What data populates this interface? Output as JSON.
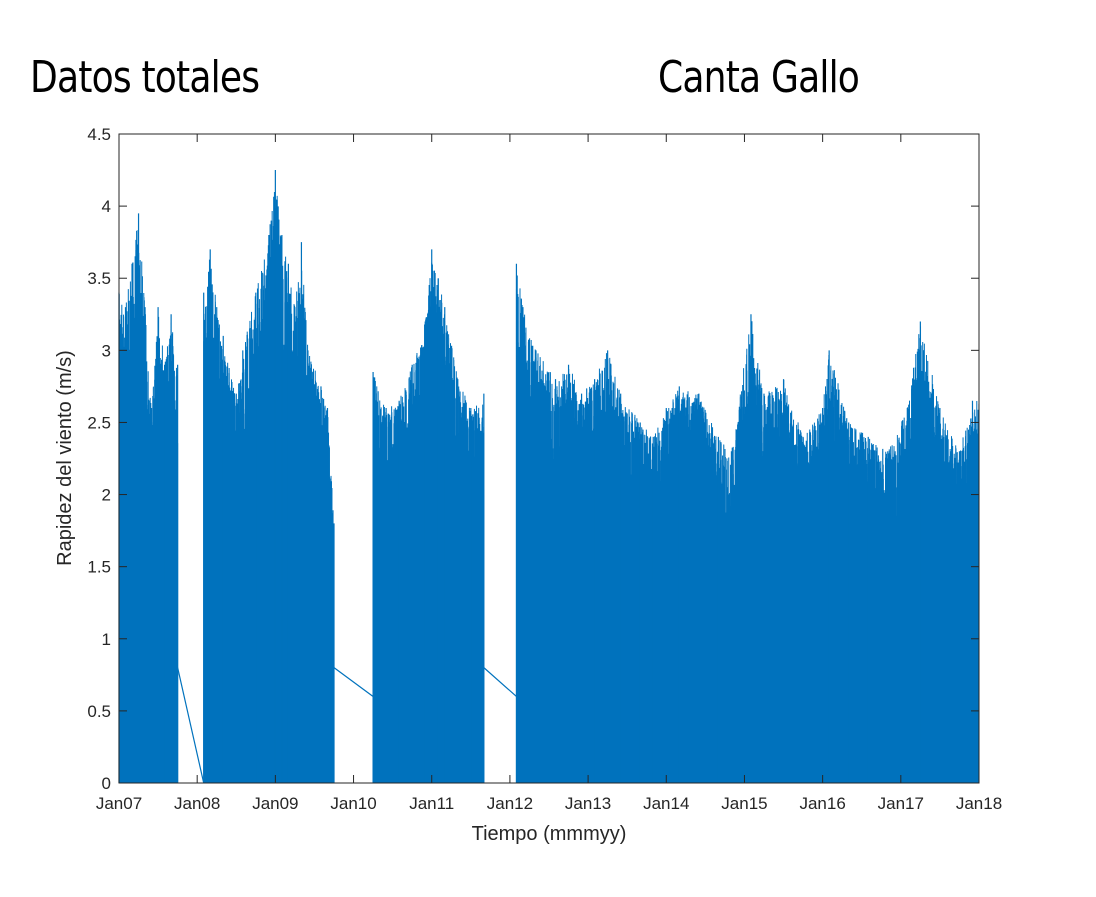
{
  "titles": {
    "left": "Datos totales",
    "right": "Canta Gallo"
  },
  "chart_data": {
    "type": "line",
    "xlabel": "Tiempo (mmmyy)",
    "ylabel": "Rapidez del viento (m/s)",
    "xlim": [
      "2007-01-01",
      "2018-01-01"
    ],
    "ylim": [
      0,
      4.5
    ],
    "x_ticks": [
      "Jan07",
      "Jan08",
      "Jan09",
      "Jan10",
      "Jan11",
      "Jan12",
      "Jan13",
      "Jan14",
      "Jan15",
      "Jan16",
      "Jan17",
      "Jan18"
    ],
    "y_ticks": [
      "0",
      "0.5",
      "1",
      "1.5",
      "2",
      "2.5",
      "3",
      "3.5",
      "4",
      "4.5"
    ],
    "grid": false,
    "color": "#0072bd",
    "series": [
      {
        "points": [
          [
            "2007-01",
            3.4
          ],
          [
            "2007-02",
            3.3
          ],
          [
            "2007-03",
            3.6
          ],
          [
            "2007-04",
            3.95
          ],
          [
            "2007-05",
            3.3
          ],
          [
            "2007-06",
            2.6
          ],
          [
            "2007-07",
            3.3
          ],
          [
            "2007-08",
            2.9
          ],
          [
            "2007-09",
            3.25
          ],
          [
            "2007-10",
            2.9
          ],
          [
            "2008-02",
            3.4
          ],
          [
            "2008-03",
            3.7
          ],
          [
            "2008-04",
            3.3
          ],
          [
            "2008-05",
            3.1
          ],
          [
            "2008-07",
            2.7
          ],
          [
            "2008-08",
            3.0
          ],
          [
            "2008-10",
            3.4
          ],
          [
            "2008-12",
            3.8
          ],
          [
            "2009-01",
            4.25
          ],
          [
            "2009-02",
            3.8
          ],
          [
            "2009-03",
            3.6
          ],
          [
            "2009-04",
            3.3
          ],
          [
            "2009-05",
            3.75
          ],
          [
            "2009-06",
            3.0
          ],
          [
            "2009-08",
            2.75
          ],
          [
            "2009-09",
            2.6
          ],
          [
            "2009-10",
            1.8
          ],
          [
            "2010-04",
            2.85
          ],
          [
            "2010-06",
            2.6
          ],
          [
            "2010-08",
            2.65
          ],
          [
            "2010-10",
            2.9
          ],
          [
            "2010-12",
            3.2
          ],
          [
            "2011-01",
            3.7
          ],
          [
            "2011-02",
            3.5
          ],
          [
            "2011-03",
            3.3
          ],
          [
            "2011-05",
            2.8
          ],
          [
            "2011-07",
            2.6
          ],
          [
            "2011-09",
            2.7
          ],
          [
            "2012-02",
            3.6
          ],
          [
            "2012-03",
            3.3
          ],
          [
            "2012-05",
            3.0
          ],
          [
            "2012-08",
            2.8
          ],
          [
            "2012-10",
            2.9
          ],
          [
            "2012-12",
            2.7
          ],
          [
            "2013-02",
            2.8
          ],
          [
            "2013-04",
            3.0
          ],
          [
            "2013-06",
            2.7
          ],
          [
            "2013-09",
            2.5
          ],
          [
            "2013-11",
            2.4
          ],
          [
            "2014-01",
            2.6
          ],
          [
            "2014-03",
            2.75
          ],
          [
            "2014-06",
            2.7
          ],
          [
            "2014-09",
            2.4
          ],
          [
            "2014-11",
            2.3
          ],
          [
            "2015-02",
            3.25
          ],
          [
            "2015-04",
            2.7
          ],
          [
            "2015-07",
            2.8
          ],
          [
            "2015-10",
            2.4
          ],
          [
            "2016-01",
            2.6
          ],
          [
            "2016-02",
            3.0
          ],
          [
            "2016-05",
            2.5
          ],
          [
            "2016-08",
            2.4
          ],
          [
            "2016-11",
            2.3
          ],
          [
            "2017-02",
            2.6
          ],
          [
            "2017-04",
            3.2
          ],
          [
            "2017-07",
            2.6
          ],
          [
            "2017-10",
            2.3
          ],
          [
            "2017-12",
            2.65
          ]
        ],
        "gaps": [
          [
            "2007-10",
            "2008-02"
          ],
          [
            "2009-10",
            "2010-04"
          ],
          [
            "2011-09",
            "2012-02"
          ]
        ]
      }
    ]
  }
}
